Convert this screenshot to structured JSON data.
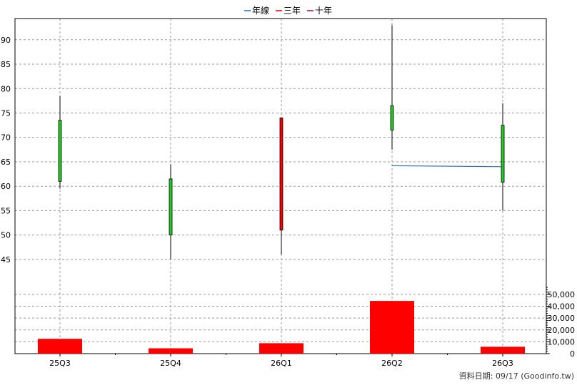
{
  "chart_data": {
    "type": "candlestick",
    "legend": {
      "placement": "top-center",
      "items": [
        {
          "label": "年線",
          "color": "#1f6fc0"
        },
        {
          "label": "三年",
          "color": "#e00000"
        },
        {
          "label": "十年",
          "color": "#a00060"
        }
      ]
    },
    "categories": [
      "25Q3",
      "25Q4",
      "26Q1",
      "26Q2",
      "26Q3"
    ],
    "price_axis": {
      "ticks": [
        45,
        50,
        55,
        60,
        65,
        70,
        75,
        80,
        85,
        90
      ],
      "ylim": [
        42.5,
        94.5
      ],
      "grid": true
    },
    "volume_axis": {
      "ticks": [
        "0",
        "10,000",
        "20,000",
        "30,000",
        "40,000",
        "50,000"
      ],
      "values": [
        0,
        10000,
        20000,
        30000,
        40000,
        50000
      ],
      "ylim": [
        0,
        59000
      ],
      "grid": true
    },
    "candles": [
      {
        "period": "25Q3",
        "open": 61,
        "high": 78.5,
        "low": 59.5,
        "close": 73.5,
        "color": "#22cc22"
      },
      {
        "period": "25Q4",
        "open": 61.5,
        "high": 64.5,
        "low": 45,
        "close": 50,
        "color": "#22cc22"
      },
      {
        "period": "26Q1",
        "open": 51,
        "high": 74,
        "low": 46,
        "close": 74,
        "color": "#ff0000"
      },
      {
        "period": "26Q2",
        "open": 76.5,
        "high": 93,
        "low": 67.5,
        "close": 71.5,
        "color": "#22cc22"
      },
      {
        "period": "26Q3",
        "open": 72.5,
        "high": 77,
        "low": 55,
        "close": 60.8,
        "color": "#22cc22"
      }
    ],
    "annual_line": [
      {
        "period": "26Q2",
        "value": 64.2
      },
      {
        "period": "26Q3",
        "value": 64.0
      }
    ],
    "volume": [
      {
        "period": "25Q3",
        "value": 12500
      },
      {
        "period": "25Q4",
        "value": 4500
      },
      {
        "period": "26Q1",
        "value": 8800
      },
      {
        "period": "26Q2",
        "value": 44500
      },
      {
        "period": "26Q3",
        "value": 5800
      }
    ],
    "volume_color": "#ff0000"
  },
  "source_note": "資料日期: 09/17  (Goodinfo.tw)"
}
